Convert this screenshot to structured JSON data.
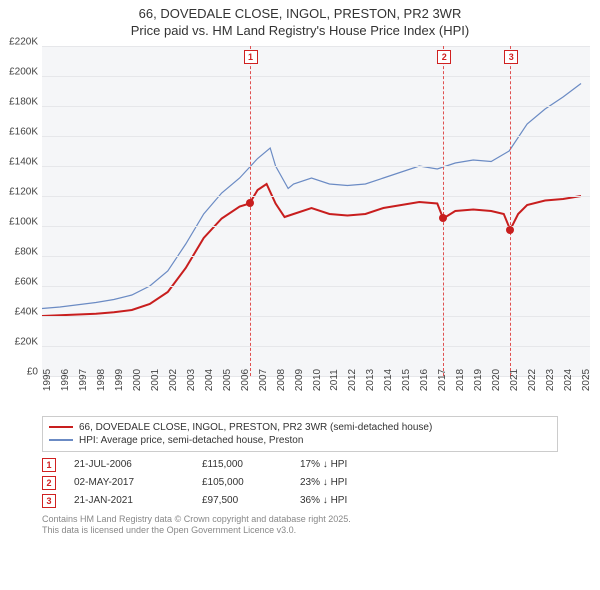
{
  "title_line1": "66, DOVEDALE CLOSE, INGOL, PRESTON, PR2 3WR",
  "title_line2": "Price paid vs. HM Land Registry's House Price Index (HPI)",
  "chart": {
    "type": "line",
    "background_color": "#f5f6f8",
    "grid_color": "#e6e7ea",
    "x_years": [
      1995,
      1996,
      1997,
      1998,
      1999,
      2000,
      2001,
      2002,
      2003,
      2004,
      2005,
      2006,
      2007,
      2008,
      2009,
      2010,
      2011,
      2012,
      2013,
      2014,
      2015,
      2016,
      2017,
      2018,
      2019,
      2020,
      2021,
      2022,
      2023,
      2024,
      2025
    ],
    "xlim": [
      1995,
      2025.5
    ],
    "ylim": [
      0,
      220000
    ],
    "ytick_step": 20000,
    "y_tick_labels": [
      "£0",
      "£20K",
      "£40K",
      "£60K",
      "£80K",
      "£100K",
      "£120K",
      "£140K",
      "£160K",
      "£180K",
      "£200K",
      "£220K"
    ],
    "series": [
      {
        "name": "price_paid",
        "label": "66, DOVEDALE CLOSE, INGOL, PRESTON, PR2 3WR (semi-detached house)",
        "color": "#c81e1e",
        "width": 2,
        "points": [
          [
            1995,
            40000
          ],
          [
            1996,
            40500
          ],
          [
            1997,
            41000
          ],
          [
            1998,
            41500
          ],
          [
            1999,
            42500
          ],
          [
            2000,
            44000
          ],
          [
            2001,
            48000
          ],
          [
            2002,
            56000
          ],
          [
            2003,
            72000
          ],
          [
            2004,
            92000
          ],
          [
            2005,
            105000
          ],
          [
            2006,
            113000
          ],
          [
            2006.55,
            115000
          ],
          [
            2007,
            124000
          ],
          [
            2007.5,
            128000
          ],
          [
            2008,
            115000
          ],
          [
            2008.5,
            106000
          ],
          [
            2009,
            108000
          ],
          [
            2010,
            112000
          ],
          [
            2011,
            108000
          ],
          [
            2012,
            107000
          ],
          [
            2013,
            108000
          ],
          [
            2014,
            112000
          ],
          [
            2015,
            114000
          ],
          [
            2016,
            116000
          ],
          [
            2017,
            115000
          ],
          [
            2017.33,
            105000
          ],
          [
            2018,
            110000
          ],
          [
            2019,
            111000
          ],
          [
            2020,
            110000
          ],
          [
            2020.7,
            108000
          ],
          [
            2021.06,
            97500
          ],
          [
            2021.5,
            108000
          ],
          [
            2022,
            114000
          ],
          [
            2023,
            117000
          ],
          [
            2024,
            118000
          ],
          [
            2025,
            120000
          ]
        ]
      },
      {
        "name": "hpi",
        "label": "HPI: Average price, semi-detached house, Preston",
        "color": "#6b8bc4",
        "width": 1.2,
        "points": [
          [
            1995,
            45000
          ],
          [
            1996,
            46000
          ],
          [
            1997,
            47500
          ],
          [
            1998,
            49000
          ],
          [
            1999,
            51000
          ],
          [
            2000,
            54000
          ],
          [
            2001,
            60000
          ],
          [
            2002,
            70000
          ],
          [
            2003,
            88000
          ],
          [
            2004,
            108000
          ],
          [
            2005,
            122000
          ],
          [
            2006,
            132000
          ],
          [
            2007,
            145000
          ],
          [
            2007.7,
            152000
          ],
          [
            2008,
            140000
          ],
          [
            2008.7,
            125000
          ],
          [
            2009,
            128000
          ],
          [
            2010,
            132000
          ],
          [
            2011,
            128000
          ],
          [
            2012,
            127000
          ],
          [
            2013,
            128000
          ],
          [
            2014,
            132000
          ],
          [
            2015,
            136000
          ],
          [
            2016,
            140000
          ],
          [
            2017,
            138000
          ],
          [
            2018,
            142000
          ],
          [
            2019,
            144000
          ],
          [
            2020,
            143000
          ],
          [
            2021,
            150000
          ],
          [
            2022,
            168000
          ],
          [
            2023,
            178000
          ],
          [
            2024,
            186000
          ],
          [
            2025,
            195000
          ]
        ]
      }
    ],
    "markers": [
      {
        "num": "1",
        "x": 2006.55,
        "y": 115000
      },
      {
        "num": "2",
        "x": 2017.33,
        "y": 105000
      },
      {
        "num": "3",
        "x": 2021.06,
        "y": 97500
      }
    ]
  },
  "sales": [
    {
      "num": "1",
      "date": "21-JUL-2006",
      "price": "£115,000",
      "diff": "17% ↓ HPI"
    },
    {
      "num": "2",
      "date": "02-MAY-2017",
      "price": "£105,000",
      "diff": "23% ↓ HPI"
    },
    {
      "num": "3",
      "date": "21-JAN-2021",
      "price": "£97,500",
      "diff": "36% ↓ HPI"
    }
  ],
  "footnote_line1": "Contains HM Land Registry data © Crown copyright and database right 2025.",
  "footnote_line2": "This data is licensed under the Open Government Licence v3.0."
}
